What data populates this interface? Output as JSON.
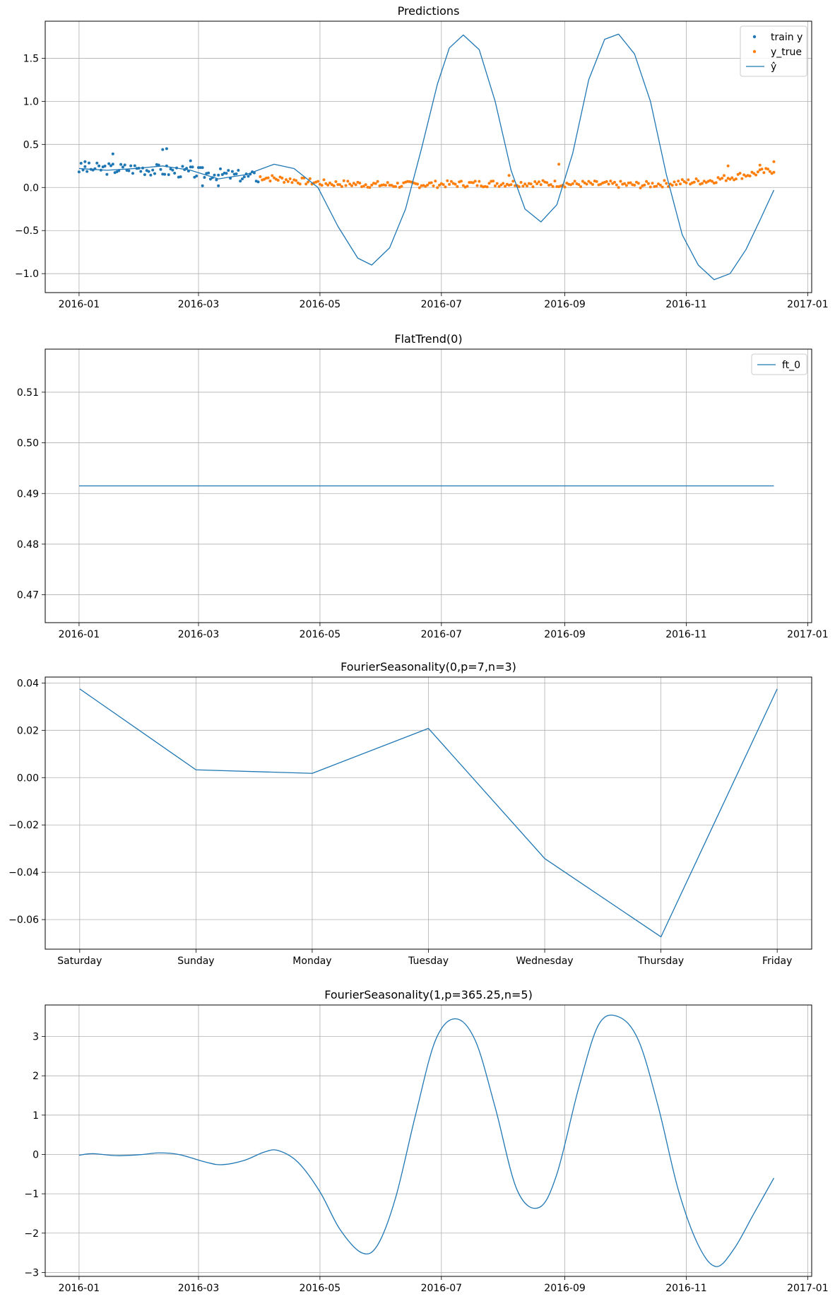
{
  "figure": {
    "background": "#ffffff",
    "grid_color": "#b0b0b0"
  },
  "colors": {
    "blue": "#1f77b4",
    "orange": "#ff7f0e"
  },
  "chart_data": [
    {
      "type": "line",
      "title": "Predictions",
      "xaxis": "date",
      "xlim": [
        "2015-12-15",
        "2017-01-03"
      ],
      "ylim": [
        -1.22,
        1.93
      ],
      "xticks": [
        "2016-01-01",
        "2016-03-01",
        "2016-05-01",
        "2016-07-01",
        "2016-09-01",
        "2016-11-01",
        "2017-01-01"
      ],
      "xtick_labels": [
        "2016-01",
        "2016-03",
        "2016-05",
        "2016-07",
        "2016-09",
        "2016-11",
        "2017-01"
      ],
      "yticks": [
        -1.0,
        -0.5,
        0.0,
        0.5,
        1.0,
        1.5
      ],
      "ytick_labels": [
        "−1.0",
        "−0.5",
        "0.0",
        "0.5",
        "1.0",
        "1.5"
      ],
      "grid": true,
      "legend": "top-right",
      "series": [
        {
          "name": "train y",
          "kind": "scatter",
          "color": "#1f77b4",
          "x_start": "2016-01-01",
          "n": 91,
          "trend": [
            0.22,
            0.22,
            0.17,
            0.12
          ],
          "amplitude": 0.07,
          "seed": 3,
          "points": [
            [
              "2016-01-04",
              0.3
            ],
            [
              "2016-01-18",
              0.39
            ],
            [
              "2016-02-12",
              0.44
            ],
            [
              "2016-02-14",
              0.45
            ],
            [
              "2016-02-26",
              0.31
            ],
            [
              "2016-03-03",
              0.02
            ],
            [
              "2016-03-11",
              0.02
            ]
          ]
        },
        {
          "name": "y_true",
          "kind": "scatter",
          "color": "#ff7f0e",
          "x_start": "2016-04-01",
          "n": 259,
          "trend": [
            0.12,
            0.05,
            0.03,
            0.04,
            0.05,
            0.04,
            0.03,
            0.08,
            0.2
          ],
          "amplitude": 0.04,
          "seed": 7,
          "points": [
            [
              "2016-08-29",
              0.27
            ],
            [
              "2016-08-04",
              0.14
            ],
            [
              "2016-11-22",
              0.25
            ],
            [
              "2016-12-15",
              0.3
            ],
            [
              "2016-12-08",
              0.26
            ]
          ]
        },
        {
          "name": "ŷ",
          "kind": "line",
          "color": "#1f77b4",
          "points": [
            [
              "2016-01-01",
              0.22
            ],
            [
              "2016-01-15",
              0.2
            ],
            [
              "2016-01-29",
              0.22
            ],
            [
              "2016-02-12",
              0.25
            ],
            [
              "2016-02-26",
              0.2
            ],
            [
              "2016-03-11",
              0.1
            ],
            [
              "2016-03-25",
              0.15
            ],
            [
              "2016-04-08",
              0.27
            ],
            [
              "2016-04-18",
              0.22
            ],
            [
              "2016-04-30",
              0.0
            ],
            [
              "2016-05-10",
              -0.45
            ],
            [
              "2016-05-20",
              -0.82
            ],
            [
              "2016-05-27",
              -0.9
            ],
            [
              "2016-06-05",
              -0.7
            ],
            [
              "2016-06-13",
              -0.25
            ],
            [
              "2016-06-21",
              0.45
            ],
            [
              "2016-06-29",
              1.2
            ],
            [
              "2016-07-05",
              1.62
            ],
            [
              "2016-07-12",
              1.77
            ],
            [
              "2016-07-20",
              1.6
            ],
            [
              "2016-07-28",
              1.0
            ],
            [
              "2016-08-05",
              0.2
            ],
            [
              "2016-08-12",
              -0.25
            ],
            [
              "2016-08-20",
              -0.4
            ],
            [
              "2016-08-28",
              -0.2
            ],
            [
              "2016-09-05",
              0.4
            ],
            [
              "2016-09-13",
              1.25
            ],
            [
              "2016-09-21",
              1.72
            ],
            [
              "2016-09-28",
              1.78
            ],
            [
              "2016-10-06",
              1.55
            ],
            [
              "2016-10-14",
              1.0
            ],
            [
              "2016-10-22",
              0.15
            ],
            [
              "2016-10-30",
              -0.55
            ],
            [
              "2016-11-07",
              -0.9
            ],
            [
              "2016-11-15",
              -1.07
            ],
            [
              "2016-11-23",
              -1.0
            ],
            [
              "2016-12-01",
              -0.72
            ],
            [
              "2016-12-08",
              -0.38
            ],
            [
              "2016-12-15",
              -0.03
            ]
          ]
        }
      ]
    },
    {
      "type": "line",
      "title": "FlatTrend(0)",
      "xaxis": "date",
      "xlim": [
        "2015-12-15",
        "2017-01-03"
      ],
      "ylim": [
        0.4645,
        0.5185
      ],
      "xticks": [
        "2016-01-01",
        "2016-03-01",
        "2016-05-01",
        "2016-07-01",
        "2016-09-01",
        "2016-11-01",
        "2017-01-01"
      ],
      "xtick_labels": [
        "2016-01",
        "2016-03",
        "2016-05",
        "2016-07",
        "2016-09",
        "2016-11",
        "2017-01"
      ],
      "yticks": [
        0.47,
        0.48,
        0.49,
        0.5,
        0.51
      ],
      "ytick_labels": [
        "0.47",
        "0.48",
        "0.49",
        "0.50",
        "0.51"
      ],
      "grid": true,
      "legend": "top-right",
      "series": [
        {
          "name": "ft_0",
          "kind": "line",
          "color": "#1f77b4",
          "points": [
            [
              "2016-01-01",
              0.4915
            ],
            [
              "2016-12-15",
              0.4915
            ]
          ]
        }
      ]
    },
    {
      "type": "line",
      "title": "FourierSeasonality(0,p=7,n=3)",
      "xaxis": "category",
      "categories": [
        "Saturday",
        "Sunday",
        "Monday",
        "Tuesday",
        "Wednesday",
        "Thursday",
        "Friday"
      ],
      "ylim": [
        -0.0725,
        0.0425
      ],
      "yticks": [
        -0.06,
        -0.04,
        -0.02,
        0.0,
        0.02,
        0.04
      ],
      "ytick_labels": [
        "−0.06",
        "−0.04",
        "−0.02",
        "0.00",
        "0.02",
        "0.04"
      ],
      "grid": true,
      "series": [
        {
          "name": "",
          "kind": "line",
          "color": "#1f77b4",
          "values": [
            0.0375,
            0.0033,
            0.0018,
            0.0208,
            -0.0342,
            -0.0673,
            0.0375
          ]
        }
      ]
    },
    {
      "type": "line",
      "title": "FourierSeasonality(1,p=365.25,n=5)",
      "xaxis": "date",
      "xlim": [
        "2015-12-15",
        "2017-01-03"
      ],
      "ylim": [
        -3.1,
        3.8
      ],
      "xticks": [
        "2016-01-01",
        "2016-03-01",
        "2016-05-01",
        "2016-07-01",
        "2016-09-01",
        "2016-11-01",
        "2017-01-01"
      ],
      "xtick_labels": [
        "2016-01",
        "2016-03",
        "2016-05",
        "2016-07",
        "2016-09",
        "2016-11",
        "2017-01"
      ],
      "yticks": [
        -3,
        -2,
        -1,
        0,
        1,
        2,
        3
      ],
      "ytick_labels": [
        "−3",
        "−2",
        "−1",
        "0",
        "1",
        "2",
        "3"
      ],
      "grid": true,
      "series": [
        {
          "name": "",
          "kind": "line",
          "color": "#1f77b4",
          "smooth": true,
          "points": [
            [
              "2016-01-01",
              -0.02
            ],
            [
              "2016-01-08",
              0.02
            ],
            [
              "2016-01-20",
              -0.03
            ],
            [
              "2016-02-02",
              0.0
            ],
            [
              "2016-02-10",
              0.04
            ],
            [
              "2016-02-20",
              0.0
            ],
            [
              "2016-03-05",
              -0.2
            ],
            [
              "2016-03-13",
              -0.26
            ],
            [
              "2016-03-24",
              -0.15
            ],
            [
              "2016-04-03",
              0.06
            ],
            [
              "2016-04-10",
              0.1
            ],
            [
              "2016-04-20",
              -0.2
            ],
            [
              "2016-05-01",
              -0.95
            ],
            [
              "2016-05-11",
              -1.9
            ],
            [
              "2016-05-22",
              -2.5
            ],
            [
              "2016-05-30",
              -2.3
            ],
            [
              "2016-06-08",
              -1.1
            ],
            [
              "2016-06-18",
              1.0
            ],
            [
              "2016-06-28",
              2.9
            ],
            [
              "2016-07-08",
              3.45
            ],
            [
              "2016-07-18",
              2.9
            ],
            [
              "2016-07-28",
              1.2
            ],
            [
              "2016-08-08",
              -0.9
            ],
            [
              "2016-08-19",
              -1.35
            ],
            [
              "2016-08-28",
              -0.5
            ],
            [
              "2016-09-08",
              1.7
            ],
            [
              "2016-09-18",
              3.3
            ],
            [
              "2016-09-28",
              3.5
            ],
            [
              "2016-10-08",
              2.9
            ],
            [
              "2016-10-18",
              1.2
            ],
            [
              "2016-10-28",
              -0.9
            ],
            [
              "2016-11-07",
              -2.3
            ],
            [
              "2016-11-16",
              -2.85
            ],
            [
              "2016-11-25",
              -2.4
            ],
            [
              "2016-12-05",
              -1.5
            ],
            [
              "2016-12-15",
              -0.6
            ]
          ]
        }
      ]
    }
  ]
}
